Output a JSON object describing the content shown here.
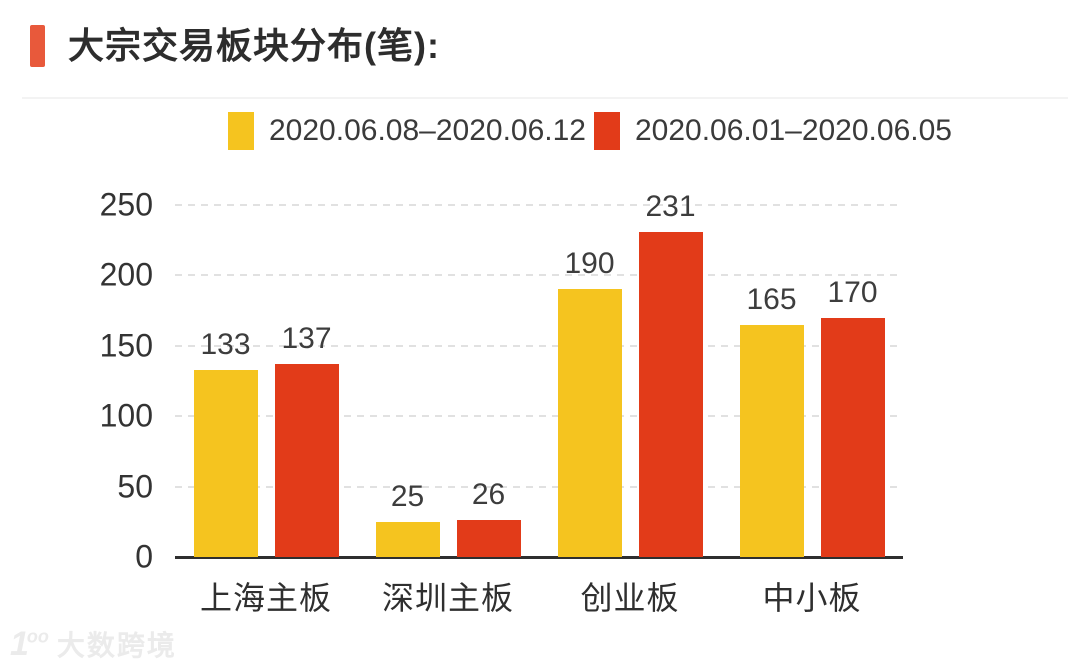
{
  "header": {
    "title": "大宗交易板块分布(笔):",
    "accent_color": "#E8593B"
  },
  "chart_data": {
    "type": "bar",
    "title": "大宗交易板块分布(笔)",
    "categories": [
      "上海主板",
      "深圳主板",
      "创业板",
      "中小板"
    ],
    "series": [
      {
        "name": "2020.06.08–2020.06.12",
        "color": "#F5C41F",
        "values": [
          133,
          25,
          190,
          165
        ]
      },
      {
        "name": "2020.06.01–2020.06.05",
        "color": "#E23B19",
        "values": [
          137,
          26,
          231,
          170
        ]
      }
    ],
    "xlabel": "",
    "ylabel": "",
    "ylim": [
      0,
      250
    ],
    "yticks": [
      0,
      50,
      100,
      150,
      200,
      250
    ],
    "grid": "horizontal dashed",
    "legend_position": "top"
  },
  "watermark": {
    "logo": "1",
    "logo_sup": "oo",
    "text": "大数跨境"
  }
}
